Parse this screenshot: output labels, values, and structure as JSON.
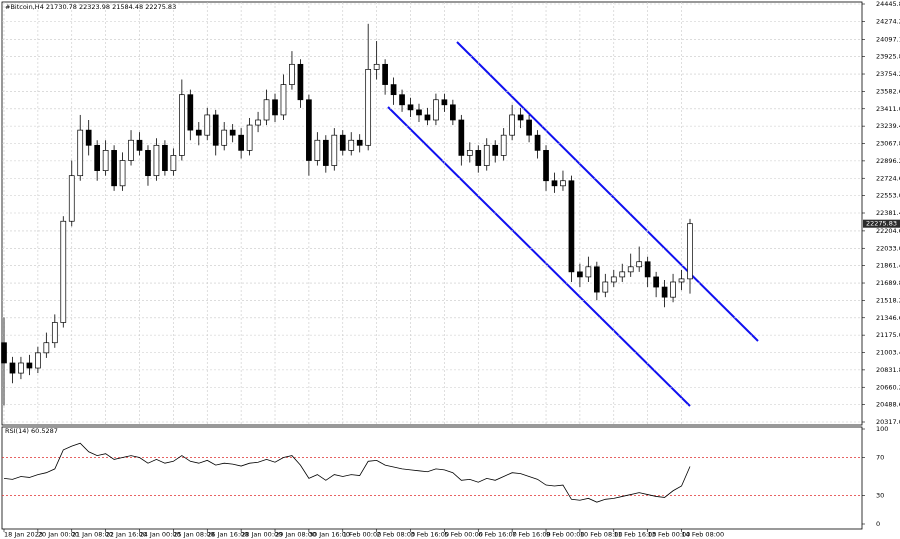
{
  "chart_data": [
    {
      "type": "candlestick",
      "title": "#Bitcoin,H4",
      "color": "#000000",
      "up_color": "#ffffff",
      "down_color": "#000000",
      "grid": true,
      "categories": [
        "18 Jan 2023",
        null,
        null,
        null,
        "20 Jan 00:00",
        null,
        null,
        null,
        "21 Jan 08:00",
        null,
        null,
        null,
        "22 Jan 16:00",
        null,
        null,
        null,
        "24 Jan 00:00",
        null,
        null,
        null,
        "25 Jan 08:00",
        null,
        null,
        null,
        "26 Jan 16:00",
        null,
        null,
        null,
        "28 Jan 00:00",
        null,
        null,
        null,
        "29 Jan 08:00",
        null,
        null,
        null,
        "30 Jan 16:00",
        null,
        null,
        null,
        "1 Feb 00:00",
        null,
        null,
        null,
        "2 Feb 08:00",
        null,
        null,
        null,
        "3 Feb 16:00",
        null,
        null,
        null,
        "5 Feb 00:00",
        null,
        null,
        null,
        "6 Feb 16:00",
        null,
        null,
        null,
        "7 Feb 16:00",
        null,
        null,
        null,
        "9 Feb 00:00",
        null,
        null,
        null,
        "10 Feb 08:00",
        null,
        null,
        null,
        "11 Feb 16:00",
        null,
        null,
        null,
        "13 Feb 00:00",
        null,
        null,
        null,
        "14 Feb 08:00",
        null
      ],
      "open": [
        21100,
        20900,
        20800,
        20900,
        20850,
        21000,
        21100,
        21300,
        22300,
        22750,
        23200,
        23050,
        22800,
        23000,
        22650,
        22900,
        23100,
        23000,
        22750,
        23050,
        22800,
        22950,
        23550,
        23200,
        23150,
        23350,
        23050,
        23200,
        23150,
        23000,
        23250,
        23300,
        23500,
        23350,
        23650,
        23850,
        23500,
        22900,
        23100,
        22850,
        23150,
        23000,
        23100,
        23050,
        23800,
        23850,
        23650,
        23550,
        23450,
        23400,
        23350,
        23300,
        23500,
        23450,
        23300,
        22950,
        23000,
        22850,
        23050,
        22950,
        23150,
        23350,
        23300,
        23150,
        23000,
        22700,
        22650,
        22700,
        21800,
        21750,
        21850,
        21600,
        21700,
        21750,
        21800,
        21850,
        21900,
        21750,
        21650,
        21550,
        21700,
        21730.78
      ],
      "high": [
        21350,
        20960,
        20960,
        20980,
        21060,
        21200,
        21380,
        22350,
        22900,
        23350,
        23300,
        23100,
        23100,
        23050,
        22980,
        23200,
        23180,
        23050,
        23120,
        23100,
        23020,
        23700,
        23600,
        23280,
        23420,
        23400,
        23280,
        23260,
        23220,
        23320,
        23380,
        23600,
        23560,
        23750,
        23980,
        23900,
        23550,
        23180,
        23150,
        23220,
        23200,
        23180,
        23160,
        24250,
        24080,
        23900,
        23720,
        23600,
        23520,
        23460,
        23420,
        23560,
        23560,
        23500,
        23350,
        23080,
        23050,
        23120,
        23100,
        23220,
        23450,
        23420,
        23350,
        23200,
        23050,
        22780,
        22800,
        22750,
        21880,
        21950,
        21900,
        21780,
        21820,
        21880,
        21980,
        22050,
        21950,
        21800,
        21720,
        21780,
        21820,
        22323.98
      ],
      "low": [
        20480,
        20700,
        20740,
        20780,
        20800,
        20950,
        21050,
        21250,
        22250,
        22700,
        22950,
        22700,
        22750,
        22600,
        22600,
        22850,
        22950,
        22650,
        22700,
        22750,
        22750,
        22900,
        23100,
        23050,
        23100,
        22950,
        23000,
        23080,
        22920,
        22950,
        23180,
        23250,
        23280,
        23300,
        23600,
        23420,
        22750,
        22850,
        22780,
        22800,
        22950,
        22950,
        22980,
        23000,
        23700,
        23550,
        23450,
        23380,
        23330,
        23280,
        23250,
        23250,
        23380,
        23250,
        22850,
        22880,
        22780,
        22800,
        22880,
        22900,
        23100,
        23220,
        23080,
        22920,
        22600,
        22580,
        22600,
        21700,
        21650,
        21700,
        21520,
        21550,
        21650,
        21700,
        21750,
        21800,
        21650,
        21550,
        21450,
        21500,
        21620,
        21584.48
      ],
      "close": [
        20900,
        20800,
        20900,
        20850,
        21000,
        21100,
        21300,
        22300,
        22750,
        23200,
        23050,
        22800,
        23000,
        22650,
        22900,
        23100,
        23000,
        22750,
        23050,
        22800,
        22950,
        23550,
        23200,
        23150,
        23350,
        23050,
        23200,
        23150,
        23000,
        23250,
        23300,
        23500,
        23350,
        23650,
        23850,
        23500,
        22900,
        23100,
        22850,
        23150,
        23000,
        23100,
        23050,
        23800,
        23850,
        23650,
        23550,
        23450,
        23400,
        23350,
        23300,
        23500,
        23450,
        23300,
        22950,
        23000,
        22850,
        23050,
        22950,
        23150,
        23350,
        23300,
        23150,
        23000,
        22700,
        22650,
        22700,
        21800,
        21750,
        21850,
        21600,
        21700,
        21750,
        21800,
        21850,
        21900,
        21750,
        21650,
        21550,
        21700,
        21730.78,
        22275.83
      ],
      "ylim": [
        20317,
        24445.8
      ],
      "yticks": [
        {
          "value": 20317,
          "label": "20317.00"
        },
        {
          "value": 20488.6,
          "label": "20488.60"
        },
        {
          "value": 20660.2,
          "label": "20660.20"
        },
        {
          "value": 20831.8,
          "label": "20831.80"
        },
        {
          "value": 21003.4,
          "label": "21003.40"
        },
        {
          "value": 21175,
          "label": "21175.00"
        },
        {
          "value": 21346.6,
          "label": "21346.60"
        },
        {
          "value": 21518.2,
          "label": "21518.20"
        },
        {
          "value": 21689.8,
          "label": "21689.80"
        },
        {
          "value": 21861.4,
          "label": "21861.40"
        },
        {
          "value": 22033,
          "label": "22033.00"
        },
        {
          "value": 22204.6,
          "label": "22204.60"
        },
        {
          "value": 22381.4,
          "label": "22381.40"
        },
        {
          "value": 22553,
          "label": "22553.00"
        },
        {
          "value": 22724.6,
          "label": "22724.60"
        },
        {
          "value": 22896.2,
          "label": "22896.20"
        },
        {
          "value": 23067.8,
          "label": "23067.80"
        },
        {
          "value": 23239.4,
          "label": "23239.40"
        },
        {
          "value": 23411,
          "label": "23411.00"
        },
        {
          "value": 23582.6,
          "label": "23582.60"
        },
        {
          "value": 23754.2,
          "label": "23754.20"
        },
        {
          "value": 23925.8,
          "label": "23925.80"
        },
        {
          "value": 24097.1,
          "label": "24097.10"
        },
        {
          "value": 24274.2,
          "label": "24274.20"
        },
        {
          "value": 24445.8,
          "label": "24445.80"
        }
      ]
    },
    {
      "type": "line",
      "levels": [
        30,
        70
      ],
      "levels_color": "#e03030",
      "series": [
        {
          "name": "RSI(14)",
          "color": "#000000",
          "values": [
            48,
            47,
            50,
            49,
            52,
            54,
            58,
            78,
            82,
            85,
            76,
            72,
            74,
            68,
            70,
            72,
            70,
            64,
            68,
            64,
            66,
            72,
            66,
            64,
            67,
            62,
            64,
            63,
            61,
            64,
            65,
            68,
            65,
            70,
            72,
            62,
            48,
            52,
            46,
            52,
            50,
            52,
            51,
            66,
            67,
            62,
            60,
            58,
            57,
            56,
            55,
            58,
            57,
            54,
            46,
            47,
            44,
            48,
            46,
            50,
            54,
            53,
            50,
            47,
            41,
            40,
            41,
            26,
            25,
            27,
            23,
            26,
            27,
            29,
            31,
            33,
            31,
            29,
            28,
            35,
            40,
            60.5287
          ]
        }
      ],
      "ylim": [
        0,
        100
      ],
      "yticks": [
        0,
        30,
        70,
        100
      ]
    }
  ]
}
